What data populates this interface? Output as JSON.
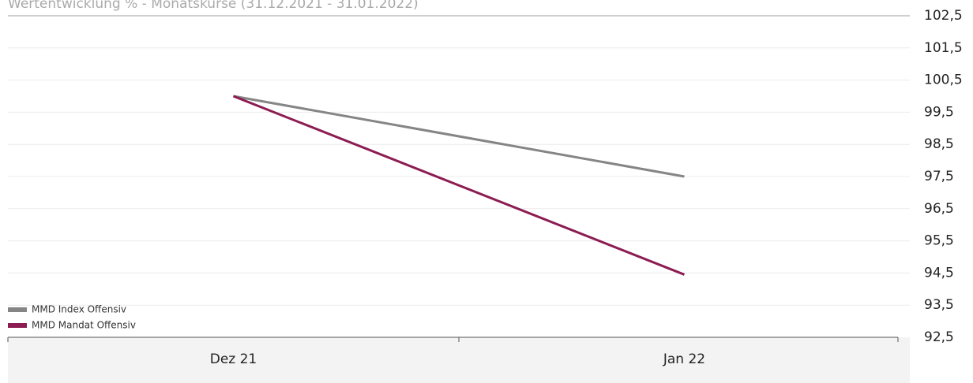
{
  "chart_data": {
    "type": "line",
    "title": "Wertentwicklung % - Monatskurse (31.12.2021 - 31.01.2022)",
    "categories": [
      "Dez 21",
      "Jan 22"
    ],
    "series": [
      {
        "name": "MMD Index Offensiv",
        "color": "#858585",
        "values": [
          100,
          97.5
        ]
      },
      {
        "name": "MMD Mandat Offensiv",
        "color": "#8c1d52",
        "values": [
          100,
          94.45
        ]
      }
    ],
    "ylim": [
      92.5,
      102.5
    ],
    "yticks": [
      {
        "value": 92.5,
        "label": "92,5"
      },
      {
        "value": 93.5,
        "label": "93,5"
      },
      {
        "value": 94.5,
        "label": "94,5"
      },
      {
        "value": 95.5,
        "label": "95,5"
      },
      {
        "value": 96.5,
        "label": "96,5"
      },
      {
        "value": 97.5,
        "label": "97,5"
      },
      {
        "value": 98.5,
        "label": "98,5"
      },
      {
        "value": 99.5,
        "label": "99,5"
      },
      {
        "value": 100.5,
        "label": "100,5"
      },
      {
        "value": 101.5,
        "label": "101,5"
      },
      {
        "value": 102.5,
        "label": "102,5"
      }
    ],
    "grid": true,
    "legend": "bottom-left"
  }
}
